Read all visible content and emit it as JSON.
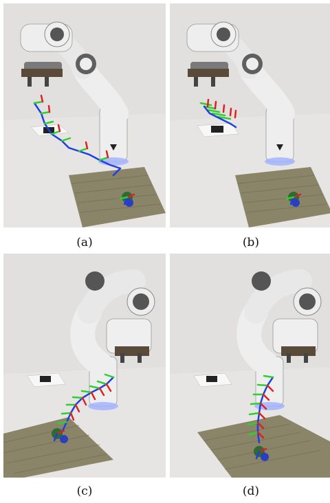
{
  "figure": {
    "panels": [
      {
        "id": "a",
        "caption": "(a)"
      },
      {
        "id": "b",
        "caption": "(b)"
      },
      {
        "id": "c",
        "caption": "(c)"
      },
      {
        "id": "d",
        "caption": "(d)"
      }
    ]
  },
  "colors": {
    "wall": "#d9d6d4",
    "table": "#e6e4e2",
    "robot": "#eeeeee",
    "robot_dark": "#6a6a6a",
    "foam": "#8a8468",
    "axis_x": "#e02020",
    "axis_y": "#2fcf2f",
    "axis_z": "#1f3fe0"
  }
}
